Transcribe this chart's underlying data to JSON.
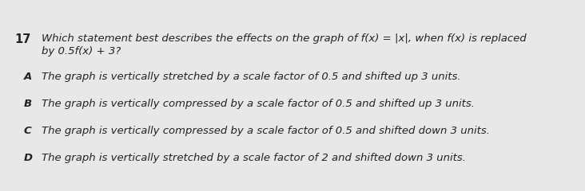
{
  "background_color": "#e8e8e8",
  "question_number": "17",
  "question_line1": "Which statement best describes the effects on the graph of f(x) = |x|, when f(x) is replaced",
  "question_line2": "by 0.5f(x) + 3?",
  "options": [
    {
      "label": "A",
      "text": "The graph is vertically stretched by a scale factor of 0.5 and shifted up 3 units."
    },
    {
      "label": "B",
      "text": "The graph is vertically compressed by a scale factor of 0.5 and shifted up 3 units."
    },
    {
      "label": "C",
      "text": "The graph is vertically compressed by a scale factor of 0.5 and shifted down 3 units."
    },
    {
      "label": "D",
      "text": "The graph is vertically stretched by a scale factor of 2 and shifted down 3 units."
    }
  ],
  "question_fontsize": 9.5,
  "option_fontsize": 9.5,
  "text_color": "#222222",
  "label_color": "#222222",
  "q_number_fontsize": 10.5
}
